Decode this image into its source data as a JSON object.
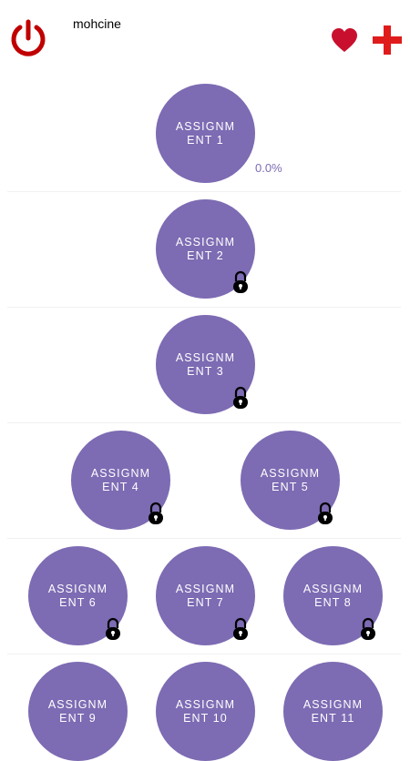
{
  "header": {
    "username": "mohcine",
    "icons": {
      "power": "power-icon",
      "favorite": "heart-icon",
      "add": "plus-icon"
    }
  },
  "colors": {
    "accent": "#7d6bb3",
    "power": "#c00000",
    "heart": "#c8102e",
    "plus": "#e01b1b"
  },
  "assignments": [
    {
      "label": "ASSIGNMENT 1",
      "locked": false,
      "progress": "0.0%"
    },
    {
      "label": "ASSIGNMENT 2",
      "locked": true
    },
    {
      "label": "ASSIGNMENT 3",
      "locked": true
    },
    {
      "label": "ASSIGNMENT 4",
      "locked": true
    },
    {
      "label": "ASSIGNMENT 5",
      "locked": true
    },
    {
      "label": "ASSIGNMENT 6",
      "locked": true
    },
    {
      "label": "ASSIGNMENT 7",
      "locked": true
    },
    {
      "label": "ASSIGNMENT 8",
      "locked": true
    },
    {
      "label": "ASSIGNMENT 9",
      "locked": true
    },
    {
      "label": "ASSIGNMENT 10",
      "locked": true
    },
    {
      "label": "ASSIGNMENT 11",
      "locked": true
    }
  ]
}
